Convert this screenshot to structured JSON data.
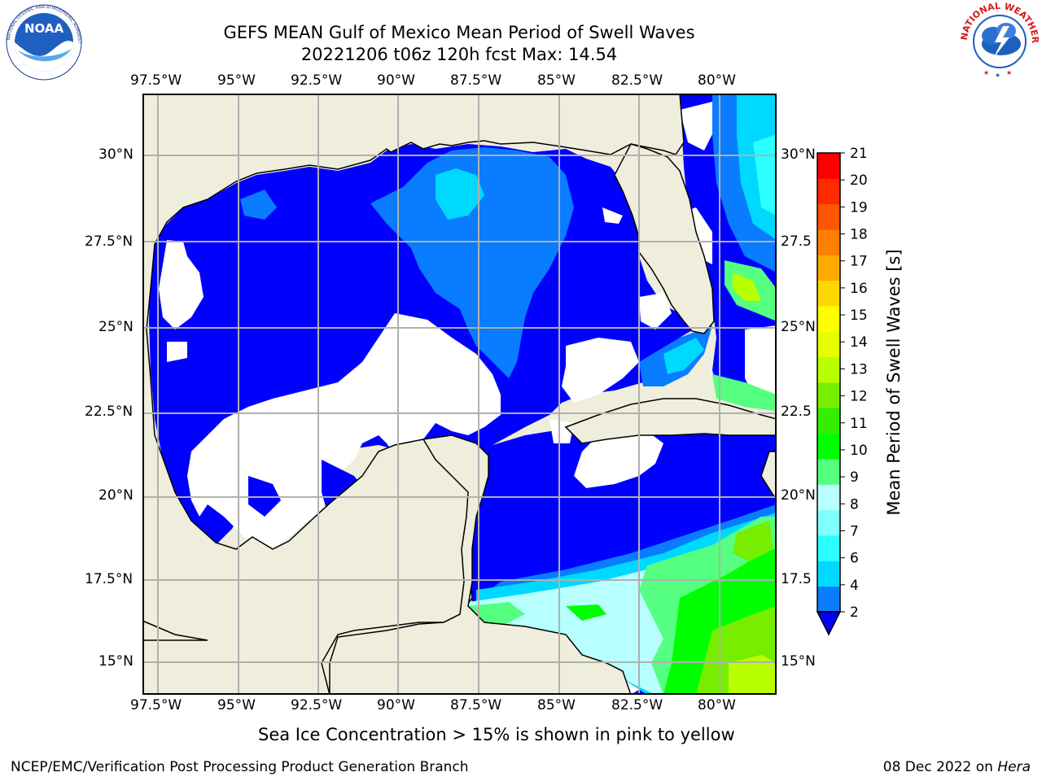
{
  "header": {
    "title_line1": "GEFS MEAN Gulf of Mexico Mean Period of Swell Waves",
    "title_line2": "20221206 t06z 120h fcst   Max: 14.54"
  },
  "logos": {
    "left": {
      "name": "noaa-logo",
      "text": "NOAA",
      "ring_text": "NATIONAL OCEANIC AND ATMOSPHERIC ADMINISTRATION · U.S. DEPARTMENT OF COMMERCE"
    },
    "right": {
      "name": "nws-logo",
      "ring_text": "NATIONAL WEATHER SERVICE"
    }
  },
  "map": {
    "lon_labels": [
      "97.5°W",
      "95°W",
      "92.5°W",
      "90°W",
      "87.5°W",
      "85°W",
      "82.5°W",
      "80°W"
    ],
    "lat_labels_left": [
      "30°N",
      "27.5°N",
      "25°N",
      "22.5°N",
      "20°N",
      "17.5°N",
      "15°N"
    ],
    "lat_labels_right": [
      "30°N",
      "27.5",
      "25°N",
      "22.5",
      "20°N",
      "17.5",
      "15°N"
    ],
    "colors": {
      "land": "#efeedd",
      "water_missing": "#ffffff",
      "grid": "#b0b0b0",
      "coast": "#000000"
    }
  },
  "colorbar": {
    "label": "Mean Period of Swell Waves [s]",
    "ticks": [
      "2",
      "4",
      "6",
      "7",
      "8",
      "9",
      "10",
      "11",
      "12",
      "13",
      "14",
      "15",
      "16",
      "17",
      "18",
      "19",
      "20",
      "21"
    ],
    "colors": [
      "#0000ff",
      "#0a7cff",
      "#00d9ff",
      "#2bffff",
      "#80ffff",
      "#b8ffff",
      "#55ff80",
      "#00ff00",
      "#33ee00",
      "#77ee00",
      "#b8ff00",
      "#e6ff00",
      "#ffff00",
      "#ffd700",
      "#ffaa00",
      "#ff8000",
      "#ff5500",
      "#ff2a00",
      "#ff0000"
    ]
  },
  "notes": {
    "ice": "Sea Ice Concentration > 15% is shown in pink to yellow"
  },
  "footer": {
    "left": "NCEP/EMC/Verification Post Processing Product Generation Branch",
    "right_date": "08 Dec 2022 on ",
    "right_host": "Hera"
  }
}
